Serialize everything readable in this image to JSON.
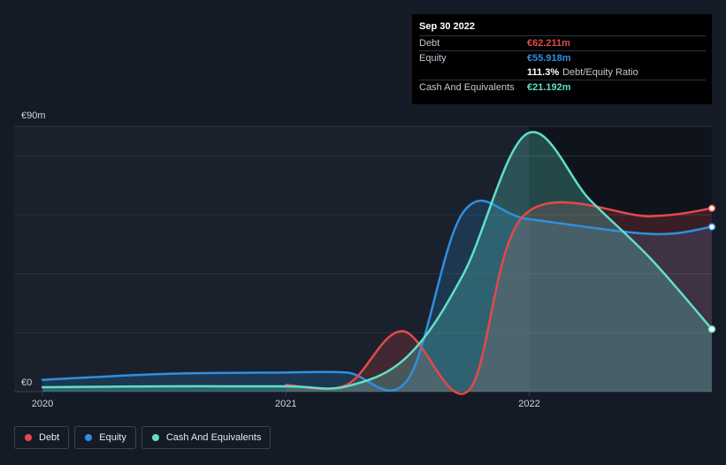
{
  "tooltip": {
    "date": "Sep 30 2022",
    "debt_label": "Debt",
    "debt_value": "€62.211m",
    "equity_label": "Equity",
    "equity_value": "€55.918m",
    "ratio_value": "111.3%",
    "ratio_label": "Debt/Equity Ratio",
    "cash_label": "Cash And Equivalents",
    "cash_value": "€21.192m"
  },
  "colors": {
    "debt": "#e5484d",
    "equity": "#2f8fe0",
    "cash": "#5fe0c8",
    "background": "#151b26"
  },
  "chart_data": {
    "type": "area",
    "y_top_label": "€90m",
    "y_zero_label": "€0",
    "ylim": [
      0,
      90
    ],
    "xlim": [
      2020.0,
      2022.75
    ],
    "x_ticks": [
      {
        "value": 2020.0,
        "label": "2020"
      },
      {
        "value": 2021.0,
        "label": "2021"
      },
      {
        "value": 2022.0,
        "label": "2022"
      }
    ],
    "y_gridlines": [
      0,
      20,
      40,
      60,
      80,
      90
    ],
    "series": [
      {
        "name": "Debt",
        "color_key": "debt",
        "points": [
          [
            2021.0,
            2.3
          ],
          [
            2021.25,
            2.3
          ],
          [
            2021.48,
            20.5
          ],
          [
            2021.75,
            0.3
          ],
          [
            2021.98,
            60.0
          ],
          [
            2022.5,
            59.5
          ],
          [
            2022.75,
            62.2
          ]
        ]
      },
      {
        "name": "Equity",
        "color_key": "equity",
        "points": [
          [
            2020.0,
            4.0
          ],
          [
            2020.5,
            6.0
          ],
          [
            2021.0,
            6.5
          ],
          [
            2021.25,
            6.5
          ],
          [
            2021.5,
            4.0
          ],
          [
            2021.73,
            61.0
          ],
          [
            2022.0,
            58.5
          ],
          [
            2022.5,
            53.5
          ],
          [
            2022.75,
            55.9
          ]
        ]
      },
      {
        "name": "Cash And Equivalents",
        "color_key": "cash",
        "points": [
          [
            2020.0,
            1.5
          ],
          [
            2020.5,
            1.8
          ],
          [
            2021.0,
            1.8
          ],
          [
            2021.25,
            1.8
          ],
          [
            2021.5,
            12.0
          ],
          [
            2021.73,
            40.0
          ],
          [
            2021.99,
            87.5
          ],
          [
            2022.25,
            65.0
          ],
          [
            2022.5,
            45.0
          ],
          [
            2022.75,
            21.2
          ]
        ]
      }
    ],
    "legend": [
      "Debt",
      "Equity",
      "Cash And Equivalents"
    ]
  }
}
